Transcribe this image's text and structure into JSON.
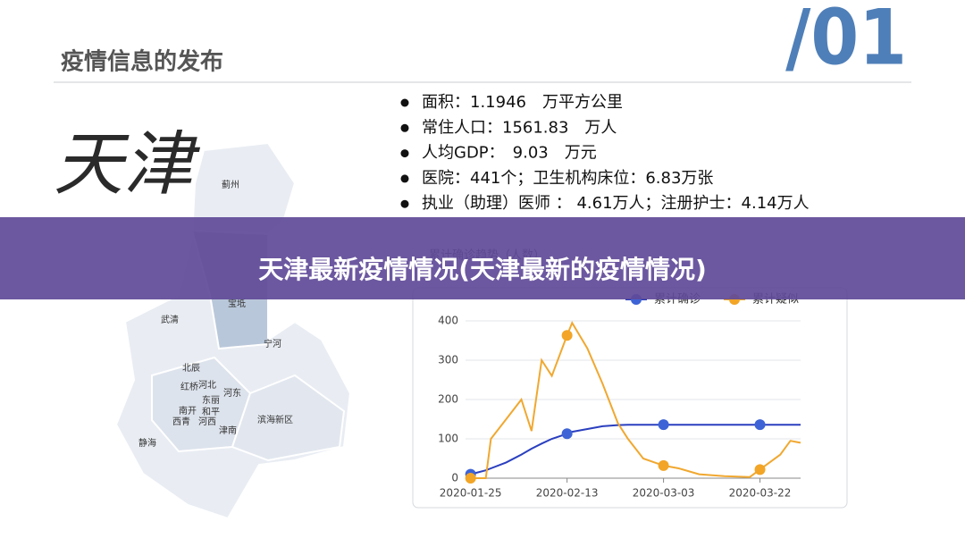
{
  "header": {
    "title": "疫情信息的发布",
    "number": "/01"
  },
  "calligraphy": "天津",
  "bullets": [
    "面积：1.1946　万平方公里",
    "常住人口：1561.83　万人",
    "人均GDP：　9.03　万元",
    "医院：441个；卫生机构床位：6.83万张",
    "执业（助理）医师 ： 4.61万人；注册护士：4.14万人"
  ],
  "map_labels": [
    "蓟州",
    "宝坻",
    "武清",
    "宁河",
    "北辰",
    "红桥",
    "河北",
    "河东",
    "南开",
    "东丽",
    "西青",
    "和平",
    "河西",
    "津南",
    "滨海新区",
    "静海"
  ],
  "banner": "天津最新疫情情况(天津最新的疫情情况)",
  "chart_data": {
    "type": "line",
    "title": "累计确诊趋势（人数）",
    "x": [
      "2020-01-25",
      "2020-01-28",
      "2020-01-29",
      "2020-02-01",
      "2020-02-04",
      "2020-02-06",
      "2020-02-08",
      "2020-02-10",
      "2020-02-13",
      "2020-02-14",
      "2020-02-17",
      "2020-02-20",
      "2020-02-23",
      "2020-02-25",
      "2020-02-28",
      "2020-03-03",
      "2020-03-06",
      "2020-03-10",
      "2020-03-15",
      "2020-03-20",
      "2020-03-22",
      "2020-03-26",
      "2020-03-28",
      "2020-03-30"
    ],
    "series": [
      {
        "name": "累计确诊",
        "color": "#2a3fbf",
        "marker_color": "#3d63d6",
        "values": [
          10,
          20,
          25,
          40,
          60,
          75,
          88,
          100,
          113,
          118,
          125,
          132,
          135,
          136,
          136,
          136,
          136,
          136,
          136,
          136,
          136,
          136,
          136,
          136
        ]
      },
      {
        "name": "累计疑似",
        "color": "#f0a830",
        "marker_color": "#f2a526",
        "values": [
          0,
          0,
          100,
          150,
          200,
          120,
          300,
          260,
          363,
          395,
          330,
          240,
          140,
          100,
          50,
          32,
          25,
          10,
          5,
          3,
          22,
          60,
          95,
          90
        ]
      }
    ],
    "xlim": [
      "2020-01-24",
      "2020-03-30"
    ],
    "xticks": [
      "2020-01-25",
      "2020-02-13",
      "2020-03-03",
      "2020-03-22"
    ],
    "ylim": [
      0,
      400
    ],
    "yticks": [
      0,
      100,
      200,
      300,
      400
    ],
    "grid": true,
    "legend": "top-right"
  }
}
